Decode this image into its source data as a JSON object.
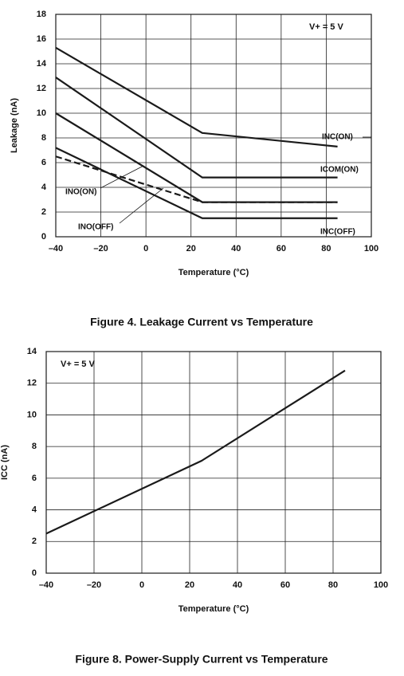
{
  "chart_data": [
    {
      "type": "line",
      "title": "Figure 4. Leakage Current vs Temperature",
      "xlabel": "Temperature (°C)",
      "ylabel": "Leakage (nA)",
      "annotation": "V+ = 5 V",
      "x": [
        -40,
        25,
        85
      ],
      "series": [
        {
          "name": "INC(ON)",
          "color": "#1a1a1a",
          "dashed": false,
          "values": [
            15.3,
            8.4,
            7.3
          ]
        },
        {
          "name": "ICOM(ON)",
          "color": "#1a1a1a",
          "dashed": false,
          "values": [
            12.9,
            4.8,
            4.8
          ]
        },
        {
          "name": "INO(ON)",
          "color": "#1a1a1a",
          "dashed": false,
          "values": [
            10.0,
            2.8,
            2.8
          ]
        },
        {
          "name": "INO(OFF)",
          "color": "#1a1a1a",
          "dashed": true,
          "values": [
            6.5,
            2.8,
            2.8
          ]
        },
        {
          "name": "INC(OFF)",
          "color": "#1a1a1a",
          "dashed": false,
          "values": [
            7.2,
            1.5,
            1.5
          ]
        }
      ],
      "xlim": [
        -40,
        100
      ],
      "xticks": [
        {
          "value": -40,
          "label": "–40"
        },
        {
          "value": -20,
          "label": "–20"
        },
        0,
        20,
        40,
        60,
        80,
        100
      ],
      "ylim": [
        0,
        18
      ],
      "yticks": [
        0,
        2,
        4,
        6,
        8,
        10,
        12,
        14,
        16,
        18
      ],
      "grid": true
    },
    {
      "type": "line",
      "title": "Figure 8. Power-Supply Current vs Temperature",
      "xlabel": "Temperature (°C)",
      "ylabel": "ICC (nA)",
      "annotation": "V+ = 5 V",
      "x": [
        -40,
        25,
        85
      ],
      "series": [
        {
          "name": null,
          "color": "#1a1a1a",
          "dashed": false,
          "values": [
            2.5,
            7.1,
            12.8
          ]
        }
      ],
      "xlim": [
        -40,
        100
      ],
      "xticks": [
        {
          "value": -40,
          "label": "–40"
        },
        {
          "value": -20,
          "label": "–20"
        },
        0,
        20,
        40,
        60,
        80,
        100
      ],
      "ylim": [
        0,
        14
      ],
      "yticks": [
        0,
        2,
        4,
        6,
        8,
        10,
        12,
        14
      ],
      "grid": true
    }
  ]
}
